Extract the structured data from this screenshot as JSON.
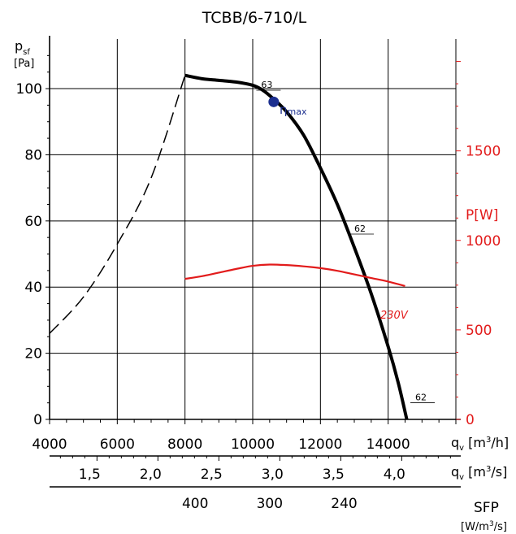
{
  "chart_data": {
    "type": "line",
    "title": "TCBB/6-710/L",
    "y_left": {
      "label_main": "p",
      "label_sub": "sf",
      "unit": "[Pa]",
      "range": [
        0,
        115
      ],
      "ticks": [
        0,
        20,
        40,
        60,
        80,
        100
      ]
    },
    "y_right": {
      "label": "P[W]",
      "range": [
        0,
        2125
      ],
      "ticks": [
        0,
        500,
        1000,
        1500
      ],
      "color": "#e21b1b"
    },
    "x_primary": {
      "label_main": "q",
      "label_sub": "v",
      "unit_pre": " [m",
      "unit_sup": "3",
      "unit_post": "/h]",
      "range": [
        4000,
        16000
      ],
      "ticks": [
        4000,
        6000,
        8000,
        10000,
        12000,
        14000
      ]
    },
    "x_secondary": {
      "label_main": "q",
      "label_sub": "v",
      "unit_pre": " [m",
      "unit_sup": "3",
      "unit_post": "/s]",
      "ticks": [
        {
          "label": "1,5",
          "value": 1.5
        },
        {
          "label": "2,0",
          "value": 2.0
        },
        {
          "label": "2,5",
          "value": 2.5
        },
        {
          "label": "3,0",
          "value": 3.0
        },
        {
          "label": "3,5",
          "value": 3.5
        },
        {
          "label": "4,0",
          "value": 4.0
        }
      ]
    },
    "x_sfp": {
      "label": "SFP",
      "unit_pre": "[W/m",
      "unit_sup": "3",
      "unit_post": "/s]",
      "ticks": [
        {
          "label": "400",
          "at_qv_m3h": 8300
        },
        {
          "label": "300",
          "at_qv_m3h": 10500
        },
        {
          "label": "240",
          "at_qv_m3h": 12700
        }
      ]
    },
    "series": [
      {
        "kind": "pressure",
        "axis": "left",
        "color": "#000000",
        "style": "solid",
        "points": [
          [
            8000,
            104
          ],
          [
            8500,
            103
          ],
          [
            9000,
            102.5
          ],
          [
            9500,
            102
          ],
          [
            10000,
            101
          ],
          [
            10300,
            99.5
          ],
          [
            10600,
            97
          ],
          [
            11000,
            93
          ],
          [
            11500,
            86
          ],
          [
            12000,
            76
          ],
          [
            12500,
            65
          ],
          [
            13000,
            52
          ],
          [
            13500,
            38
          ],
          [
            14000,
            22
          ],
          [
            14300,
            11
          ],
          [
            14550,
            0
          ]
        ]
      },
      {
        "kind": "pressure-extension",
        "axis": "left",
        "color": "#000000",
        "style": "dashed",
        "points": [
          [
            4000,
            26
          ],
          [
            5000,
            37
          ],
          [
            6000,
            53
          ],
          [
            7000,
            73
          ],
          [
            8000,
            104
          ]
        ]
      },
      {
        "name": "230V",
        "kind": "power",
        "axis": "right",
        "color": "#e21b1b",
        "style": "solid",
        "points": [
          [
            8000,
            785
          ],
          [
            8500,
            800
          ],
          [
            9000,
            820
          ],
          [
            9500,
            840
          ],
          [
            10000,
            858
          ],
          [
            10500,
            865
          ],
          [
            11000,
            862
          ],
          [
            11500,
            855
          ],
          [
            12000,
            845
          ],
          [
            12500,
            830
          ],
          [
            13000,
            810
          ],
          [
            13500,
            790
          ],
          [
            14000,
            770
          ],
          [
            14500,
            745
          ]
        ]
      }
    ],
    "annotations": [
      {
        "text": "63",
        "x": 10250,
        "y": 101
      },
      {
        "text": "62",
        "x": 13000,
        "y": 57.5
      },
      {
        "text": "62",
        "x": 14800,
        "y": 6.5
      }
    ],
    "eta_max": {
      "label_main": "η",
      "label_sub": "max",
      "x": 10620,
      "y": 96
    }
  }
}
